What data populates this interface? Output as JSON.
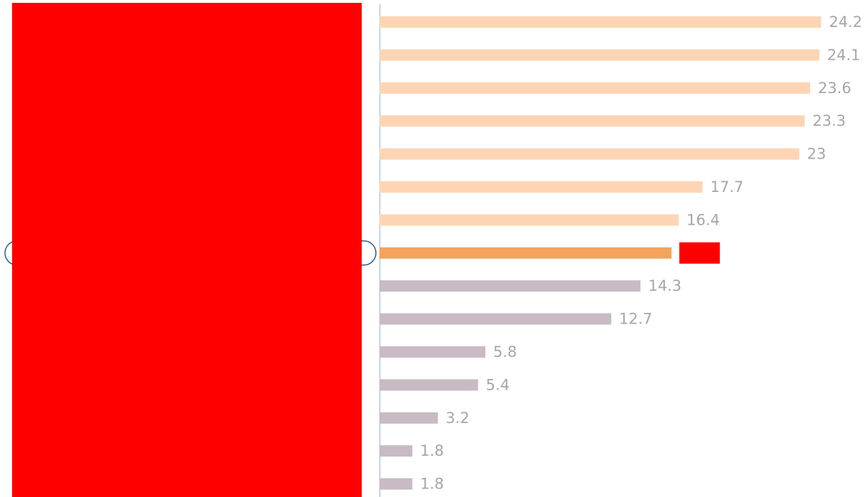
{
  "chart_data": {
    "type": "bar",
    "orientation": "horizontal",
    "categories": [
      "",
      "",
      "",
      "",
      "",
      "",
      "",
      "",
      "",
      "",
      "",
      "",
      "",
      "",
      ""
    ],
    "values": [
      24.2,
      24.1,
      23.6,
      23.3,
      23,
      17.7,
      16.4,
      16.0,
      14.3,
      12.7,
      5.8,
      5.4,
      3.2,
      1.8,
      1.8
    ],
    "data_labels": [
      "24.2",
      "24.1",
      "23.6",
      "23.3",
      "23",
      "17.7",
      "16.4",
      "",
      "14.3",
      "12.7",
      "5.8",
      "5.4",
      "3.2",
      "1.8",
      "1.8"
    ],
    "highlight_index": 7,
    "title": "",
    "xlabel": "",
    "ylabel": "",
    "xlim": [
      0,
      26
    ],
    "grid": false,
    "legend": "none",
    "colors": {
      "upper": "#fdd5b4",
      "highlight": "#f5a35c",
      "lower": "#c8bbc3",
      "redaction": "#ff0000",
      "axis": "#b4c6db",
      "highlight_outline": "#2e5a8c",
      "label": "#a6a6a6"
    }
  }
}
